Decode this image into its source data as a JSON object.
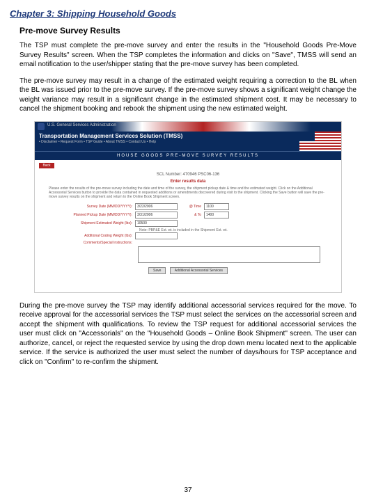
{
  "chapter_title": "Chapter 3: Shipping Household Goods",
  "section_title": "Pre-move Survey Results",
  "para1": "The TSP must complete the pre-move survey and enter the results in the \"Household Goods Pre-Move Survey Results\" screen. When the TSP completes the information and clicks on \"Save\", TMSS will send an email notification to the user/shipper stating that the pre-move survey has been completed.",
  "para2": "The pre-move survey may result in a change of the estimated weight requiring a correction to the BL when the BL was issued prior to the pre-move survey. If the pre-move survey shows a significant weight change the weight variance may result in a significant change in the estimated shipment cost. It may be necessary to cancel the shipment booking and rebook the shipment using the new estimated weight.",
  "para3": "During the pre-move survey the TSP may identify additional accessorial services required for the move. To receive approval for the accessorial services the TSP must select the services on the accessorial screen and accept the shipment with qualifications. To review the TSP request for additional accessorial services the user must click on \"Accessorials\" on the \"Household Goods – Online Book Shipment\" screen. The user can authorize, cancel, or reject the requested service by using the drop down menu located next to the applicable service. If the service is authorized the user must select the number of days/hours for TSP acceptance and click on \"Confirm\" to re-confirm the shipment.",
  "page_number": "37",
  "screenshot": {
    "gsa_text": "U.S. General Services Administration",
    "tmss_title": "Transportation Management Services Solution (TMSS)",
    "tmss_links": "• Disclaimer  • Request Form  • TSP Guide  • About TMSS  • Contact Us  • Help",
    "results_header": "HOUSE GOODS PRE-MOVE SURVEY RESULTS",
    "back_label": "Back",
    "scl_label": "SCL Number: 470946 PSC06-136",
    "enter_label": "Enter results data",
    "instructions": "Please enter the results of the pre-move survey including the date and time of the survey, the shipment pickup date & time and the estimated weight. Click on the Additional Accessorial Services button to provide the data contained in requested additions or amendments discovered during visit to the shipment. Clicking the Save button will save the pre-move survey results on the shipment and return to the Online Book Shipment screen.",
    "survey_date_label": "Survey Date (MM/DD/YYYY):",
    "survey_date_value": "3/22/2006",
    "pickup_date_label": "Planned Pickup Date (MM/DD/YYYY):",
    "pickup_date_value": "3/31/2006",
    "weight_label": "Shipment Estimated Weight (lbs):",
    "weight_value": "10500",
    "additional_weight_label": "Additional Crating Weight (lbs):",
    "time_label1": "@ Time",
    "time_value1": "1100",
    "time_label2": "& To",
    "time_value2": "1400",
    "note_text": "Note: PBP&E Est. wt. is included in the Shipment Est. wt.",
    "comments_label": "Comments/Special Instructions:",
    "btn_save": "Save",
    "btn_additional": "Additional Accessorial Services"
  }
}
